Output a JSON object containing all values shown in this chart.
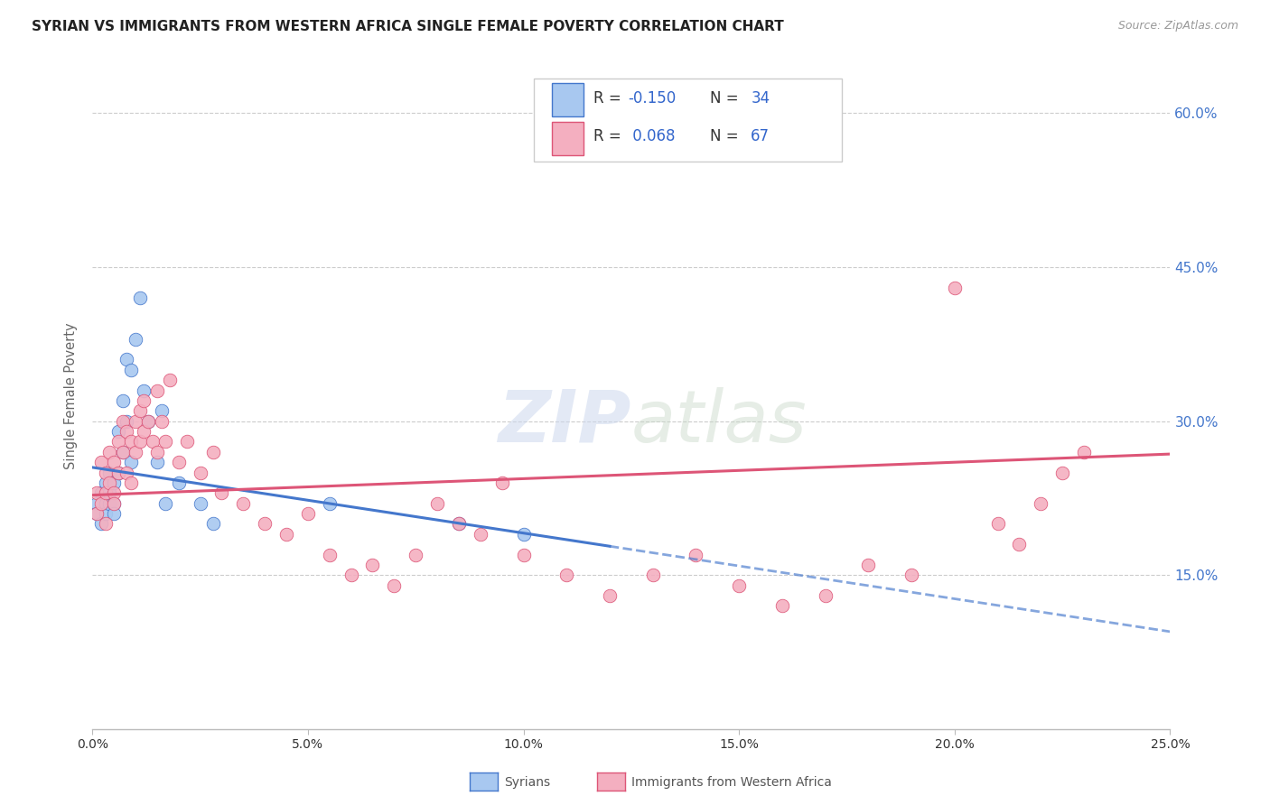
{
  "title": "SYRIAN VS IMMIGRANTS FROM WESTERN AFRICA SINGLE FEMALE POVERTY CORRELATION CHART",
  "source": "Source: ZipAtlas.com",
  "ylabel": "Single Female Poverty",
  "legend_label1": "Syrians",
  "legend_label2": "Immigrants from Western Africa",
  "r1": -0.15,
  "n1": 34,
  "r2": 0.068,
  "n2": 67,
  "color_syrian": "#a8c8f0",
  "color_western_africa": "#f4afc0",
  "color_syrian_line": "#4477cc",
  "color_western_africa_line": "#dd5577",
  "color_title": "#222222",
  "color_source": "#999999",
  "color_right_axis": "#4477cc",
  "background_color": "#ffffff",
  "xlim": [
    0.0,
    0.25
  ],
  "ylim": [
    0.0,
    0.65
  ],
  "yticks": [
    0.0,
    0.15,
    0.3,
    0.45,
    0.6
  ],
  "ytick_labels": [
    "",
    "15.0%",
    "30.0%",
    "45.0%",
    "60.0%"
  ],
  "syrian_x": [
    0.001,
    0.001,
    0.002,
    0.002,
    0.003,
    0.003,
    0.003,
    0.004,
    0.004,
    0.004,
    0.005,
    0.005,
    0.005,
    0.006,
    0.006,
    0.007,
    0.007,
    0.008,
    0.008,
    0.009,
    0.009,
    0.01,
    0.011,
    0.012,
    0.013,
    0.015,
    0.016,
    0.017,
    0.02,
    0.025,
    0.028,
    0.055,
    0.085,
    0.1
  ],
  "syrian_y": [
    0.22,
    0.21,
    0.23,
    0.2,
    0.24,
    0.22,
    0.21,
    0.25,
    0.22,
    0.23,
    0.24,
    0.22,
    0.21,
    0.29,
    0.25,
    0.32,
    0.27,
    0.36,
    0.3,
    0.35,
    0.26,
    0.38,
    0.42,
    0.33,
    0.3,
    0.26,
    0.31,
    0.22,
    0.24,
    0.22,
    0.2,
    0.22,
    0.2,
    0.19
  ],
  "western_x": [
    0.001,
    0.001,
    0.002,
    0.002,
    0.003,
    0.003,
    0.003,
    0.004,
    0.004,
    0.005,
    0.005,
    0.005,
    0.006,
    0.006,
    0.007,
    0.007,
    0.008,
    0.008,
    0.009,
    0.009,
    0.01,
    0.01,
    0.011,
    0.011,
    0.012,
    0.012,
    0.013,
    0.014,
    0.015,
    0.015,
    0.016,
    0.017,
    0.018,
    0.02,
    0.022,
    0.025,
    0.028,
    0.03,
    0.035,
    0.04,
    0.045,
    0.05,
    0.055,
    0.06,
    0.065,
    0.07,
    0.075,
    0.08,
    0.085,
    0.09,
    0.095,
    0.1,
    0.11,
    0.12,
    0.13,
    0.14,
    0.15,
    0.16,
    0.17,
    0.18,
    0.19,
    0.2,
    0.21,
    0.215,
    0.22,
    0.225,
    0.23
  ],
  "western_y": [
    0.23,
    0.21,
    0.26,
    0.22,
    0.25,
    0.23,
    0.2,
    0.27,
    0.24,
    0.26,
    0.23,
    0.22,
    0.28,
    0.25,
    0.3,
    0.27,
    0.29,
    0.25,
    0.28,
    0.24,
    0.3,
    0.27,
    0.31,
    0.28,
    0.32,
    0.29,
    0.3,
    0.28,
    0.33,
    0.27,
    0.3,
    0.28,
    0.34,
    0.26,
    0.28,
    0.25,
    0.27,
    0.23,
    0.22,
    0.2,
    0.19,
    0.21,
    0.17,
    0.15,
    0.16,
    0.14,
    0.17,
    0.22,
    0.2,
    0.19,
    0.24,
    0.17,
    0.15,
    0.13,
    0.15,
    0.17,
    0.14,
    0.12,
    0.13,
    0.16,
    0.15,
    0.43,
    0.2,
    0.18,
    0.22,
    0.25,
    0.27
  ],
  "trend_blue_x0": 0.0,
  "trend_blue_y0": 0.255,
  "trend_blue_x1": 0.25,
  "trend_blue_y1": 0.095,
  "trend_blue_solid_end": 0.12,
  "trend_pink_x0": 0.0,
  "trend_pink_y0": 0.228,
  "trend_pink_x1": 0.25,
  "trend_pink_y1": 0.268
}
